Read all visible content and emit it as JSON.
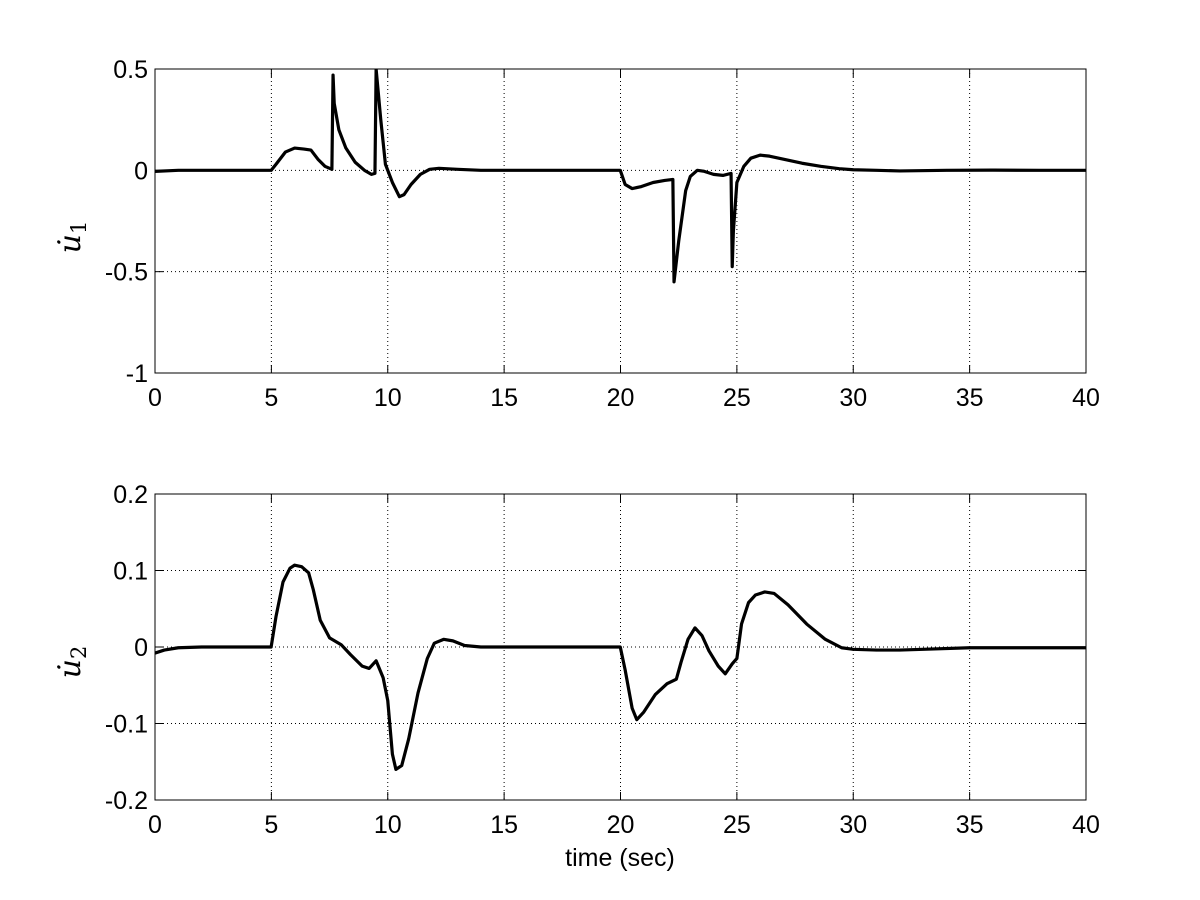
{
  "chart_data": [
    {
      "type": "line",
      "xlabel": "",
      "ylabel": "u̇",
      "ylabel_subscript": "1",
      "xlim": [
        0,
        40
      ],
      "ylim": [
        -1,
        0.5
      ],
      "xticks": [
        0,
        5,
        10,
        15,
        20,
        25,
        30,
        35,
        40
      ],
      "xtick_labels": [
        "0",
        "5",
        "10",
        "15",
        "20",
        "25",
        "30",
        "35",
        "40"
      ],
      "yticks": [
        -1,
        -0.5,
        0,
        0.5
      ],
      "ytick_labels": [
        "-1",
        "-0.5",
        "0",
        "0.5"
      ],
      "grid": true,
      "series": [
        {
          "color": "#000000",
          "x": [
            0,
            1,
            4.99,
            5.2,
            5.6,
            6.0,
            6.4,
            6.7,
            7.0,
            7.3,
            7.6,
            7.65,
            7.7,
            7.9,
            8.2,
            8.6,
            9.0,
            9.3,
            9.45,
            9.5,
            9.7,
            9.9,
            10.2,
            10.5,
            10.7,
            11.0,
            11.4,
            11.8,
            12.2,
            13,
            14,
            16,
            18,
            19.99,
            20.2,
            20.5,
            20.9,
            21.4,
            21.9,
            22.25,
            22.3,
            22.5,
            22.8,
            23.0,
            23.3,
            23.6,
            24.0,
            24.4,
            24.75,
            24.8,
            24.85,
            25.0,
            25.3,
            25.6,
            26.0,
            26.4,
            27,
            27.8,
            28.6,
            29.4,
            30,
            31,
            32,
            34,
            36,
            38,
            40
          ],
          "y": [
            -0.005,
            0,
            0,
            0.03,
            0.09,
            0.11,
            0.105,
            0.1,
            0.055,
            0.02,
            0.005,
            0.47,
            0.33,
            0.2,
            0.11,
            0.04,
            0.0,
            -0.02,
            -0.015,
            0.5,
            0.25,
            0.03,
            -0.06,
            -0.13,
            -0.12,
            -0.07,
            -0.02,
            0.005,
            0.01,
            0.005,
            0,
            0,
            0,
            0,
            -0.07,
            -0.09,
            -0.08,
            -0.06,
            -0.05,
            -0.045,
            -0.55,
            -0.35,
            -0.1,
            -0.03,
            0.0,
            -0.005,
            -0.02,
            -0.025,
            -0.015,
            -0.475,
            -0.3,
            -0.06,
            0.02,
            0.06,
            0.075,
            0.07,
            0.055,
            0.035,
            0.02,
            0.008,
            0.003,
            0,
            -0.003,
            0,
            0.001,
            0,
            0
          ]
        }
      ]
    },
    {
      "type": "line",
      "xlabel": "time (sec)",
      "ylabel": "u̇",
      "ylabel_subscript": "2",
      "xlim": [
        0,
        40
      ],
      "ylim": [
        -0.2,
        0.2
      ],
      "xticks": [
        0,
        5,
        10,
        15,
        20,
        25,
        30,
        35,
        40
      ],
      "xtick_labels": [
        "0",
        "5",
        "10",
        "15",
        "20",
        "25",
        "30",
        "35",
        "40"
      ],
      "yticks": [
        -0.2,
        -0.1,
        0,
        0.1,
        0.2
      ],
      "ytick_labels": [
        "-0.2",
        "-0.1",
        "0",
        "0.1",
        "0.2"
      ],
      "grid": true,
      "series": [
        {
          "color": "#000000",
          "x": [
            0,
            0.4,
            1.0,
            2,
            4.99,
            5.2,
            5.5,
            5.8,
            6.0,
            6.3,
            6.6,
            6.8,
            7.1,
            7.5,
            8.0,
            8.4,
            8.9,
            9.2,
            9.5,
            9.8,
            10.0,
            10.2,
            10.35,
            10.6,
            10.9,
            11.3,
            11.7,
            12.0,
            12.4,
            12.8,
            13.3,
            14,
            16,
            18,
            19.99,
            20.2,
            20.5,
            20.7,
            21.0,
            21.5,
            22.0,
            22.4,
            22.6,
            22.9,
            23.2,
            23.5,
            23.8,
            24.2,
            24.5,
            24.8,
            25.0,
            25.2,
            25.5,
            25.8,
            26.2,
            26.6,
            27.2,
            28,
            28.8,
            29.5,
            30,
            31,
            32,
            33,
            35,
            38,
            40
          ],
          "y": [
            -0.008,
            -0.004,
            -0.001,
            0,
            0,
            0.04,
            0.085,
            0.103,
            0.107,
            0.105,
            0.097,
            0.075,
            0.035,
            0.012,
            0.003,
            -0.01,
            -0.025,
            -0.028,
            -0.018,
            -0.04,
            -0.07,
            -0.14,
            -0.16,
            -0.155,
            -0.12,
            -0.06,
            -0.015,
            0.005,
            0.01,
            0.008,
            0.002,
            0,
            0,
            0,
            0,
            -0.03,
            -0.08,
            -0.095,
            -0.085,
            -0.062,
            -0.048,
            -0.042,
            -0.02,
            0.01,
            0.025,
            0.015,
            -0.005,
            -0.025,
            -0.035,
            -0.022,
            -0.015,
            0.03,
            0.058,
            0.068,
            0.072,
            0.07,
            0.055,
            0.03,
            0.01,
            -0.001,
            -0.003,
            -0.004,
            -0.004,
            -0.003,
            -0.001,
            -0.001,
            -0.001
          ]
        }
      ]
    }
  ]
}
